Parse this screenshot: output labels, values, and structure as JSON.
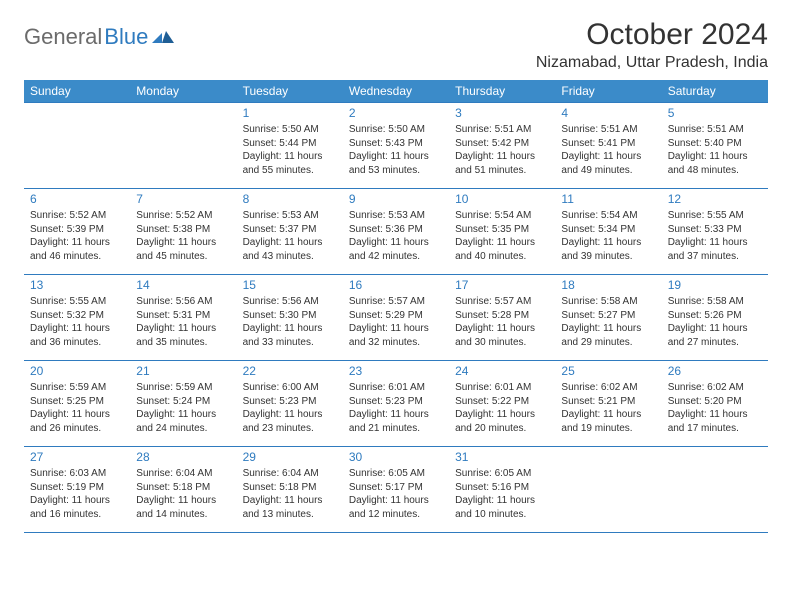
{
  "logo": {
    "general": "General",
    "blue": "Blue"
  },
  "title": "October 2024",
  "location": "Nizamabad, Uttar Pradesh, India",
  "colors": {
    "header_bg": "#3b8bc9",
    "header_text": "#ffffff",
    "accent": "#2f7bbf",
    "row_border": "#2f7bbf",
    "body_text": "#333333",
    "logo_gray": "#6b6b6b",
    "background": "#ffffff"
  },
  "typography": {
    "title_fontsize": 30,
    "location_fontsize": 16,
    "header_fontsize": 12,
    "daynum_fontsize": 12,
    "cell_fontsize": 10
  },
  "day_headers": [
    "Sunday",
    "Monday",
    "Tuesday",
    "Wednesday",
    "Thursday",
    "Friday",
    "Saturday"
  ],
  "weeks": [
    [
      null,
      null,
      {
        "n": "1",
        "sr": "Sunrise: 5:50 AM",
        "ss": "Sunset: 5:44 PM",
        "dl": "Daylight: 11 hours and 55 minutes."
      },
      {
        "n": "2",
        "sr": "Sunrise: 5:50 AM",
        "ss": "Sunset: 5:43 PM",
        "dl": "Daylight: 11 hours and 53 minutes."
      },
      {
        "n": "3",
        "sr": "Sunrise: 5:51 AM",
        "ss": "Sunset: 5:42 PM",
        "dl": "Daylight: 11 hours and 51 minutes."
      },
      {
        "n": "4",
        "sr": "Sunrise: 5:51 AM",
        "ss": "Sunset: 5:41 PM",
        "dl": "Daylight: 11 hours and 49 minutes."
      },
      {
        "n": "5",
        "sr": "Sunrise: 5:51 AM",
        "ss": "Sunset: 5:40 PM",
        "dl": "Daylight: 11 hours and 48 minutes."
      }
    ],
    [
      {
        "n": "6",
        "sr": "Sunrise: 5:52 AM",
        "ss": "Sunset: 5:39 PM",
        "dl": "Daylight: 11 hours and 46 minutes."
      },
      {
        "n": "7",
        "sr": "Sunrise: 5:52 AM",
        "ss": "Sunset: 5:38 PM",
        "dl": "Daylight: 11 hours and 45 minutes."
      },
      {
        "n": "8",
        "sr": "Sunrise: 5:53 AM",
        "ss": "Sunset: 5:37 PM",
        "dl": "Daylight: 11 hours and 43 minutes."
      },
      {
        "n": "9",
        "sr": "Sunrise: 5:53 AM",
        "ss": "Sunset: 5:36 PM",
        "dl": "Daylight: 11 hours and 42 minutes."
      },
      {
        "n": "10",
        "sr": "Sunrise: 5:54 AM",
        "ss": "Sunset: 5:35 PM",
        "dl": "Daylight: 11 hours and 40 minutes."
      },
      {
        "n": "11",
        "sr": "Sunrise: 5:54 AM",
        "ss": "Sunset: 5:34 PM",
        "dl": "Daylight: 11 hours and 39 minutes."
      },
      {
        "n": "12",
        "sr": "Sunrise: 5:55 AM",
        "ss": "Sunset: 5:33 PM",
        "dl": "Daylight: 11 hours and 37 minutes."
      }
    ],
    [
      {
        "n": "13",
        "sr": "Sunrise: 5:55 AM",
        "ss": "Sunset: 5:32 PM",
        "dl": "Daylight: 11 hours and 36 minutes."
      },
      {
        "n": "14",
        "sr": "Sunrise: 5:56 AM",
        "ss": "Sunset: 5:31 PM",
        "dl": "Daylight: 11 hours and 35 minutes."
      },
      {
        "n": "15",
        "sr": "Sunrise: 5:56 AM",
        "ss": "Sunset: 5:30 PM",
        "dl": "Daylight: 11 hours and 33 minutes."
      },
      {
        "n": "16",
        "sr": "Sunrise: 5:57 AM",
        "ss": "Sunset: 5:29 PM",
        "dl": "Daylight: 11 hours and 32 minutes."
      },
      {
        "n": "17",
        "sr": "Sunrise: 5:57 AM",
        "ss": "Sunset: 5:28 PM",
        "dl": "Daylight: 11 hours and 30 minutes."
      },
      {
        "n": "18",
        "sr": "Sunrise: 5:58 AM",
        "ss": "Sunset: 5:27 PM",
        "dl": "Daylight: 11 hours and 29 minutes."
      },
      {
        "n": "19",
        "sr": "Sunrise: 5:58 AM",
        "ss": "Sunset: 5:26 PM",
        "dl": "Daylight: 11 hours and 27 minutes."
      }
    ],
    [
      {
        "n": "20",
        "sr": "Sunrise: 5:59 AM",
        "ss": "Sunset: 5:25 PM",
        "dl": "Daylight: 11 hours and 26 minutes."
      },
      {
        "n": "21",
        "sr": "Sunrise: 5:59 AM",
        "ss": "Sunset: 5:24 PM",
        "dl": "Daylight: 11 hours and 24 minutes."
      },
      {
        "n": "22",
        "sr": "Sunrise: 6:00 AM",
        "ss": "Sunset: 5:23 PM",
        "dl": "Daylight: 11 hours and 23 minutes."
      },
      {
        "n": "23",
        "sr": "Sunrise: 6:01 AM",
        "ss": "Sunset: 5:23 PM",
        "dl": "Daylight: 11 hours and 21 minutes."
      },
      {
        "n": "24",
        "sr": "Sunrise: 6:01 AM",
        "ss": "Sunset: 5:22 PM",
        "dl": "Daylight: 11 hours and 20 minutes."
      },
      {
        "n": "25",
        "sr": "Sunrise: 6:02 AM",
        "ss": "Sunset: 5:21 PM",
        "dl": "Daylight: 11 hours and 19 minutes."
      },
      {
        "n": "26",
        "sr": "Sunrise: 6:02 AM",
        "ss": "Sunset: 5:20 PM",
        "dl": "Daylight: 11 hours and 17 minutes."
      }
    ],
    [
      {
        "n": "27",
        "sr": "Sunrise: 6:03 AM",
        "ss": "Sunset: 5:19 PM",
        "dl": "Daylight: 11 hours and 16 minutes."
      },
      {
        "n": "28",
        "sr": "Sunrise: 6:04 AM",
        "ss": "Sunset: 5:18 PM",
        "dl": "Daylight: 11 hours and 14 minutes."
      },
      {
        "n": "29",
        "sr": "Sunrise: 6:04 AM",
        "ss": "Sunset: 5:18 PM",
        "dl": "Daylight: 11 hours and 13 minutes."
      },
      {
        "n": "30",
        "sr": "Sunrise: 6:05 AM",
        "ss": "Sunset: 5:17 PM",
        "dl": "Daylight: 11 hours and 12 minutes."
      },
      {
        "n": "31",
        "sr": "Sunrise: 6:05 AM",
        "ss": "Sunset: 5:16 PM",
        "dl": "Daylight: 11 hours and 10 minutes."
      },
      null,
      null
    ]
  ]
}
